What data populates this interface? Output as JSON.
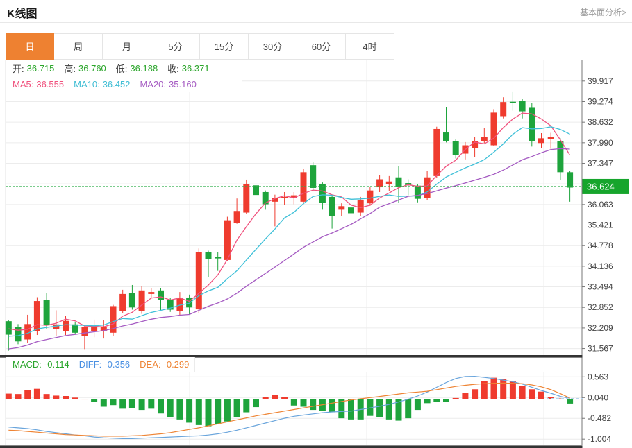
{
  "header": {
    "title": "K线图",
    "link": "基本面分析>"
  },
  "tabs": {
    "items": [
      "日",
      "周",
      "月",
      "5分",
      "15分",
      "30分",
      "60分",
      "4时"
    ],
    "active": "日"
  },
  "kline_info": {
    "ohlc": [
      {
        "label": "开:",
        "value": "36.715"
      },
      {
        "label": "高:",
        "value": "36.760"
      },
      {
        "label": "低:",
        "value": "36.188"
      },
      {
        "label": "收:",
        "value": "36.371"
      }
    ],
    "ma": [
      {
        "label": "MA5:",
        "value": "36.555",
        "color": "#f0527e"
      },
      {
        "label": "MA10:",
        "value": "36.452",
        "color": "#3fbdd4"
      },
      {
        "label": "MA20:",
        "value": "35.160",
        "color": "#a55bc2"
      }
    ]
  },
  "macd_info": {
    "items": [
      {
        "label": "MACD:",
        "value": "-0.114",
        "color": "#28a52a"
      },
      {
        "label": "DIFF:",
        "value": "-0.356",
        "color": "#4a90e2"
      },
      {
        "label": "DEA:",
        "value": "-0.299",
        "color": "#ee8434"
      }
    ]
  },
  "colors": {
    "up": "#ef3b2e",
    "down": "#1ea43c",
    "ma5": "#f0527e",
    "ma10": "#3fc0d8",
    "ma20": "#a55bc2",
    "diff_line": "#6aa5dc",
    "dea_line": "#ee8434",
    "value_green": "#2aa52a",
    "badge_bg": "#16a52c",
    "tab_active": "#ee8131",
    "price_line": "#2fae4a",
    "grid": "#ececec",
    "axis": "#777777",
    "axis_text": "#444444"
  },
  "chart_data": {
    "type": "candlestick",
    "panels": [
      "price",
      "macd"
    ],
    "grid": true,
    "legend_position": "none",
    "current_price": 36.624,
    "current_price_label": "36.624",
    "price_axis_ticks": [
      39.917,
      39.274,
      38.632,
      37.99,
      37.347,
      36.706,
      36.063,
      35.421,
      34.778,
      34.136,
      33.494,
      32.852,
      32.209,
      31.567
    ],
    "macd_axis_ticks": [
      0.563,
      0.04,
      -0.482,
      -1.004
    ],
    "ma_periods": [
      5,
      10,
      20
    ],
    "ma_seed_closes": [
      30.9,
      30.8,
      30.9,
      31.0,
      31.1,
      31.2,
      31.3,
      31.4,
      31.5,
      31.5,
      31.6,
      31.6,
      31.7,
      31.8,
      31.9,
      32.0,
      32.2,
      32.3,
      32.4
    ],
    "candles": [
      [
        32.42,
        32.45,
        31.5,
        32.0
      ],
      [
        32.25,
        32.33,
        31.7,
        31.79
      ],
      [
        31.85,
        32.62,
        31.74,
        32.33
      ],
      [
        32.1,
        33.17,
        31.99,
        33.05
      ],
      [
        33.09,
        33.3,
        32.17,
        32.29
      ],
      [
        32.18,
        32.76,
        31.96,
        32.32
      ],
      [
        32.1,
        32.58,
        31.99,
        32.43
      ],
      [
        32.32,
        32.4,
        32.0,
        32.06
      ],
      [
        31.96,
        32.3,
        31.55,
        32.25
      ],
      [
        32.1,
        32.47,
        31.92,
        32.25
      ],
      [
        32.12,
        32.45,
        31.88,
        32.23
      ],
      [
        32.06,
        32.93,
        31.95,
        32.89
      ],
      [
        32.74,
        33.4,
        32.67,
        33.27
      ],
      [
        33.29,
        33.55,
        32.78,
        32.85
      ],
      [
        32.74,
        33.51,
        32.65,
        33.38
      ],
      [
        33.27,
        33.44,
        33.15,
        33.33
      ],
      [
        33.38,
        33.45,
        32.74,
        33.08
      ],
      [
        33.08,
        33.15,
        32.71,
        32.78
      ],
      [
        32.74,
        33.33,
        32.6,
        33.16
      ],
      [
        33.16,
        33.25,
        32.64,
        32.85
      ],
      [
        32.79,
        34.69,
        32.68,
        34.58
      ],
      [
        34.58,
        34.62,
        33.81,
        34.36
      ],
      [
        34.43,
        34.58,
        33.99,
        34.38
      ],
      [
        34.33,
        35.68,
        34.3,
        35.57
      ],
      [
        35.48,
        36.25,
        35.46,
        35.86
      ],
      [
        35.81,
        36.84,
        35.76,
        36.69
      ],
      [
        36.66,
        36.7,
        36.19,
        36.36
      ],
      [
        36.45,
        36.5,
        35.9,
        36.07
      ],
      [
        36.15,
        36.37,
        35.38,
        36.26
      ],
      [
        36.28,
        36.45,
        36.05,
        36.3
      ],
      [
        36.26,
        36.45,
        36.07,
        36.35
      ],
      [
        36.15,
        37.18,
        36.07,
        37.07
      ],
      [
        37.29,
        37.4,
        36.47,
        36.58
      ],
      [
        36.69,
        36.75,
        35.9,
        36.12
      ],
      [
        36.3,
        36.35,
        35.31,
        35.71
      ],
      [
        35.9,
        36.1,
        35.7,
        36.01
      ],
      [
        35.97,
        36.05,
        35.14,
        35.79
      ],
      [
        35.81,
        36.3,
        35.7,
        36.19
      ],
      [
        36.1,
        36.6,
        36.02,
        36.5
      ],
      [
        36.6,
        36.97,
        36.45,
        36.85
      ],
      [
        36.7,
        36.95,
        36.48,
        36.78
      ],
      [
        36.91,
        37.25,
        36.12,
        36.62
      ],
      [
        36.73,
        36.85,
        36.35,
        36.66
      ],
      [
        36.65,
        36.7,
        36.13,
        36.24
      ],
      [
        36.27,
        37.1,
        36.2,
        36.91
      ],
      [
        36.95,
        38.49,
        36.9,
        38.42
      ],
      [
        38.31,
        39.11,
        38.0,
        38.05
      ],
      [
        38.05,
        38.1,
        37.5,
        37.61
      ],
      [
        37.65,
        38.01,
        37.47,
        37.91
      ],
      [
        37.83,
        38.16,
        37.54,
        38.05
      ],
      [
        38.05,
        38.45,
        37.98,
        38.16
      ],
      [
        37.91,
        39.04,
        37.88,
        38.93
      ],
      [
        38.82,
        39.41,
        38.75,
        39.26
      ],
      [
        39.27,
        39.59,
        38.99,
        39.25
      ],
      [
        39.3,
        39.35,
        38.75,
        38.97
      ],
      [
        39.08,
        39.22,
        37.87,
        38.05
      ],
      [
        37.98,
        38.29,
        37.83,
        38.13
      ],
      [
        38.1,
        38.3,
        37.8,
        38.18
      ],
      [
        38.05,
        38.13,
        36.84,
        37.07
      ],
      [
        37.07,
        37.1,
        36.15,
        36.59
      ]
    ],
    "macd": {
      "hist": [
        0.14,
        0.13,
        0.22,
        0.26,
        0.13,
        0.09,
        0.08,
        0.04,
        0.01,
        -0.06,
        -0.19,
        -0.15,
        -0.24,
        -0.22,
        -0.27,
        -0.24,
        -0.36,
        -0.45,
        -0.51,
        -0.59,
        -0.65,
        -0.68,
        -0.62,
        -0.56,
        -0.45,
        -0.33,
        -0.2,
        0.05,
        0.11,
        0.06,
        -0.16,
        -0.19,
        -0.27,
        -0.3,
        -0.33,
        -0.48,
        -0.51,
        -0.51,
        -0.42,
        -0.45,
        -0.51,
        -0.54,
        -0.48,
        -0.27,
        -0.1,
        -0.07,
        -0.07,
        0.03,
        0.16,
        0.25,
        0.45,
        0.54,
        0.51,
        0.45,
        0.34,
        0.25,
        0.19,
        0.05,
        0.02,
        -0.11
      ],
      "diff": [
        -0.7,
        -0.72,
        -0.74,
        -0.77,
        -0.81,
        -0.84,
        -0.87,
        -0.9,
        -0.92,
        -0.95,
        -0.97,
        -0.98,
        -0.99,
        -0.99,
        -0.98,
        -0.97,
        -0.96,
        -0.95,
        -0.94,
        -0.93,
        -0.92,
        -0.9,
        -0.87,
        -0.83,
        -0.78,
        -0.72,
        -0.66,
        -0.6,
        -0.54,
        -0.48,
        -0.43,
        -0.4,
        -0.37,
        -0.34,
        -0.32,
        -0.31,
        -0.3,
        -0.26,
        -0.22,
        -0.18,
        -0.13,
        -0.07,
        0.0,
        0.08,
        0.18,
        0.3,
        0.42,
        0.52,
        0.57,
        0.575,
        0.55,
        0.52,
        0.48,
        0.44,
        0.38,
        0.3,
        0.22,
        0.15,
        0.07,
        0.02
      ],
      "dea": [
        -0.78,
        -0.79,
        -0.81,
        -0.83,
        -0.85,
        -0.87,
        -0.89,
        -0.9,
        -0.91,
        -0.92,
        -0.93,
        -0.93,
        -0.93,
        -0.92,
        -0.91,
        -0.89,
        -0.87,
        -0.84,
        -0.8,
        -0.76,
        -0.72,
        -0.67,
        -0.62,
        -0.57,
        -0.52,
        -0.47,
        -0.42,
        -0.38,
        -0.34,
        -0.3,
        -0.26,
        -0.22,
        -0.18,
        -0.14,
        -0.1,
        -0.06,
        -0.02,
        0.01,
        0.04,
        0.07,
        0.1,
        0.13,
        0.16,
        0.18,
        0.2,
        0.24,
        0.28,
        0.32,
        0.35,
        0.375,
        0.39,
        0.4,
        0.405,
        0.4,
        0.39,
        0.36,
        0.31,
        0.24,
        0.14,
        0.03
      ]
    }
  }
}
